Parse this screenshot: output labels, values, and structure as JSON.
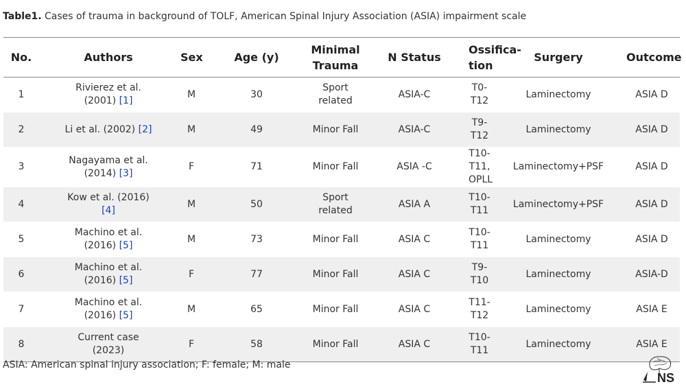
{
  "caption": {
    "label": "Table1.",
    "text": " Cases of trauma in background of TOLF, American Spinal Injury Association (ASIA) impairment scale"
  },
  "headers": {
    "no": "No.",
    "authors": "Authors",
    "sex": "Sex",
    "age": "Age (y)",
    "trauma_1": "Minimal",
    "trauma_2": "Trauma",
    "status": "N Status",
    "ossification_1": "Ossifica-",
    "ossification_2": "tion",
    "surgery": "Surgery",
    "outcome": "Outcome"
  },
  "rows": [
    {
      "no": "1",
      "author_1": "Rivierez et al.",
      "author_2": "(2001) ",
      "ref": "[1]",
      "sex": "M",
      "age": "30",
      "trauma": "Sport related",
      "status": "ASIA-C",
      "oss_1": "T0-T12",
      "oss_2": "",
      "surgery": "Laminectomy",
      "outcome": "ASIA D"
    },
    {
      "no": "2",
      "author_1": "Li et al. (2002) ",
      "author_2": "",
      "ref": "[2]",
      "sex": "M",
      "age": "49",
      "trauma": "Minor Fall",
      "status": "ASIA-C",
      "oss_1": "T9-T12",
      "oss_2": "",
      "surgery": "Laminectomy",
      "outcome": "ASIA D"
    },
    {
      "no": "3",
      "author_1": "Nagayama et al.",
      "author_2": "(2014) ",
      "ref": "[3]",
      "sex": "F",
      "age": "71",
      "trauma": "Minor Fall",
      "status": "ASIA -C",
      "oss_1": "T10-T11,",
      "oss_2": "OPLL",
      "surgery": "Laminectomy+PSF",
      "outcome": "ASIA D"
    },
    {
      "no": "4",
      "author_1": "Kow et al.  (2016)",
      "author_2": "",
      "ref": "[4]",
      "sex": "M",
      "age": "50",
      "trauma": "Sport related",
      "status": "ASIA A",
      "oss_1": "T10-T11",
      "oss_2": "",
      "surgery": "Laminectomy+PSF",
      "outcome": "ASIA D"
    },
    {
      "no": "5",
      "author_1": "Machino et al.",
      "author_2": "(2016) ",
      "ref": "[5]",
      "sex": "M",
      "age": "73",
      "trauma": "Minor Fall",
      "status": "ASIA C",
      "oss_1": "T10-T11",
      "oss_2": "",
      "surgery": "Laminectomy",
      "outcome": "ASIA D"
    },
    {
      "no": "6",
      "author_1": "Machino et al.",
      "author_2": "(2016) ",
      "ref": "[5]",
      "sex": "F",
      "age": "77",
      "trauma": "Minor Fall",
      "status": "ASIA C",
      "oss_1": "T9-T10",
      "oss_2": "",
      "surgery": "Laminectomy",
      "outcome": "ASIA-D"
    },
    {
      "no": "7",
      "author_1": "Machino et al.",
      "author_2": "(2016) ",
      "ref": "[5]",
      "sex": "M",
      "age": "65",
      "trauma": "Minor Fall",
      "status": "ASIA C",
      "oss_1": "T11-T12",
      "oss_2": "",
      "surgery": "Laminectomy",
      "outcome": "ASIA E"
    },
    {
      "no": "8",
      "author_1": "Current case",
      "author_2": "(2023)",
      "ref": "",
      "sex": "F",
      "age": "58",
      "trauma": "Minor Fall",
      "status": "ASIA C",
      "oss_1": "T10-T11",
      "oss_2": "",
      "surgery": "Laminectomy",
      "outcome": "ASIA E"
    }
  ],
  "footnote": "ASIA: American spinal injury association; F: female; M: male",
  "logo": {
    "text": "NS",
    "icon": "brain-logo-icon",
    "color": "#222222"
  },
  "colors": {
    "stripe": "#efefef",
    "reference_link": "#1a3cc9",
    "rule": "#888888"
  }
}
